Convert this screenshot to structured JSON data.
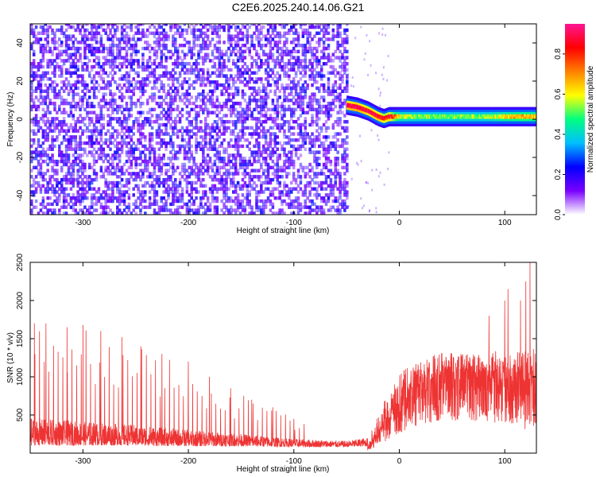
{
  "title": "C2E6.2025.240.14.06.G21",
  "chart_data": [
    {
      "type": "heatmap",
      "xlabel": "Height of straight line (km)",
      "ylabel": "Frequency (Hz)",
      "colorbar_label": "Normalized spectral amplitude",
      "xlim": [
        -350,
        130
      ],
      "ylim": [
        -50,
        50
      ],
      "xticks": [
        -300,
        -200,
        -100,
        0,
        100
      ],
      "yticks": [
        -40,
        -20,
        0,
        20,
        40
      ],
      "colorbar_range": [
        0,
        0.95
      ],
      "colorbar_ticks": [
        0,
        0.2,
        0.4,
        0.6,
        0.8
      ],
      "colormap": [
        "#ffffff",
        "#7a00ff",
        "#0000ff",
        "#00bfff",
        "#00ff80",
        "#ffff00",
        "#ff8000",
        "#ff0000",
        "#ff1493"
      ],
      "noise_region": {
        "x_range": [
          -350,
          -50
        ],
        "freq_range": [
          -50,
          50
        ],
        "amplitude": [
          0.0,
          0.25
        ]
      },
      "signal_trace": {
        "x": [
          -50,
          -40,
          -30,
          -20,
          -15,
          -10,
          0,
          20,
          40,
          60,
          80,
          100,
          120,
          130
        ],
        "freq": [
          7,
          6,
          4,
          1,
          0,
          1,
          1,
          1,
          1,
          1,
          1,
          1,
          1,
          1
        ],
        "amplitude": [
          0.9,
          0.95,
          0.85,
          0.9,
          0.8,
          0.85,
          0.55,
          0.5,
          0.5,
          0.5,
          0.5,
          0.6,
          0.65,
          0.6
        ]
      }
    },
    {
      "type": "line",
      "xlabel": "Height of straight line (km)",
      "ylabel": "SNR (10 * v/v)",
      "xlim": [
        -350,
        130
      ],
      "ylim": [
        0,
        2500
      ],
      "xticks": [
        -300,
        -200,
        -100,
        0,
        100
      ],
      "yticks": [
        500,
        1000,
        1500,
        2000,
        2500
      ],
      "color": "#ee3333",
      "envelope": {
        "x": [
          -350,
          -300,
          -250,
          -200,
          -150,
          -100,
          -50,
          -30,
          -20,
          -10,
          0,
          20,
          40,
          60,
          80,
          100,
          120,
          130
        ],
        "baseline": [
          100,
          100,
          100,
          90,
          90,
          80,
          80,
          90,
          250,
          450,
          650,
          900,
          1050,
          1050,
          1000,
          950,
          950,
          950
        ],
        "upper": [
          500,
          450,
          400,
          330,
          270,
          200,
          170,
          220,
          550,
          850,
          1100,
          1250,
          1350,
          1350,
          1350,
          1400,
          1450,
          1400
        ]
      },
      "spike_peaks": {
        "x": [
          -346,
          -335,
          -315,
          -300,
          -283,
          -263,
          -245,
          -225,
          -200,
          -180,
          -160,
          -140,
          -120,
          -100
        ],
        "y": [
          1700,
          1700,
          1650,
          1680,
          1600,
          1520,
          1400,
          1300,
          1200,
          1000,
          850,
          700,
          600,
          450
        ]
      },
      "upper_tail_peaks": {
        "x": [
          85,
          100,
          103,
          115,
          120,
          124
        ],
        "y": [
          1800,
          2000,
          2150,
          2000,
          2250,
          2500
        ]
      }
    }
  ]
}
